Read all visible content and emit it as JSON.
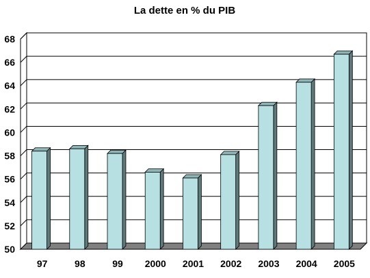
{
  "chart_data": {
    "type": "bar",
    "title": "La dette en % du PIB",
    "xlabel": "",
    "ylabel": "",
    "categories": [
      "97",
      "98",
      "99",
      "2000",
      "2001",
      "2002",
      "2003",
      "2004",
      "2005"
    ],
    "values": [
      58.4,
      58.6,
      58.2,
      56.6,
      56.1,
      58.1,
      62.3,
      64.3,
      66.7
    ],
    "ylim": [
      50,
      68
    ],
    "yticks": [
      "50",
      "52",
      "54",
      "56",
      "58",
      "60",
      "62",
      "64",
      "66",
      "68"
    ],
    "grid": true,
    "legend": "none",
    "style": "3d-column",
    "colors": {
      "bar_front": "#b7e0e2",
      "bar_side": "#5f7a7b",
      "bar_top": "#8fb4b6",
      "floor": "#808080",
      "wall": "#ffffff",
      "gridline": "#000000"
    }
  }
}
